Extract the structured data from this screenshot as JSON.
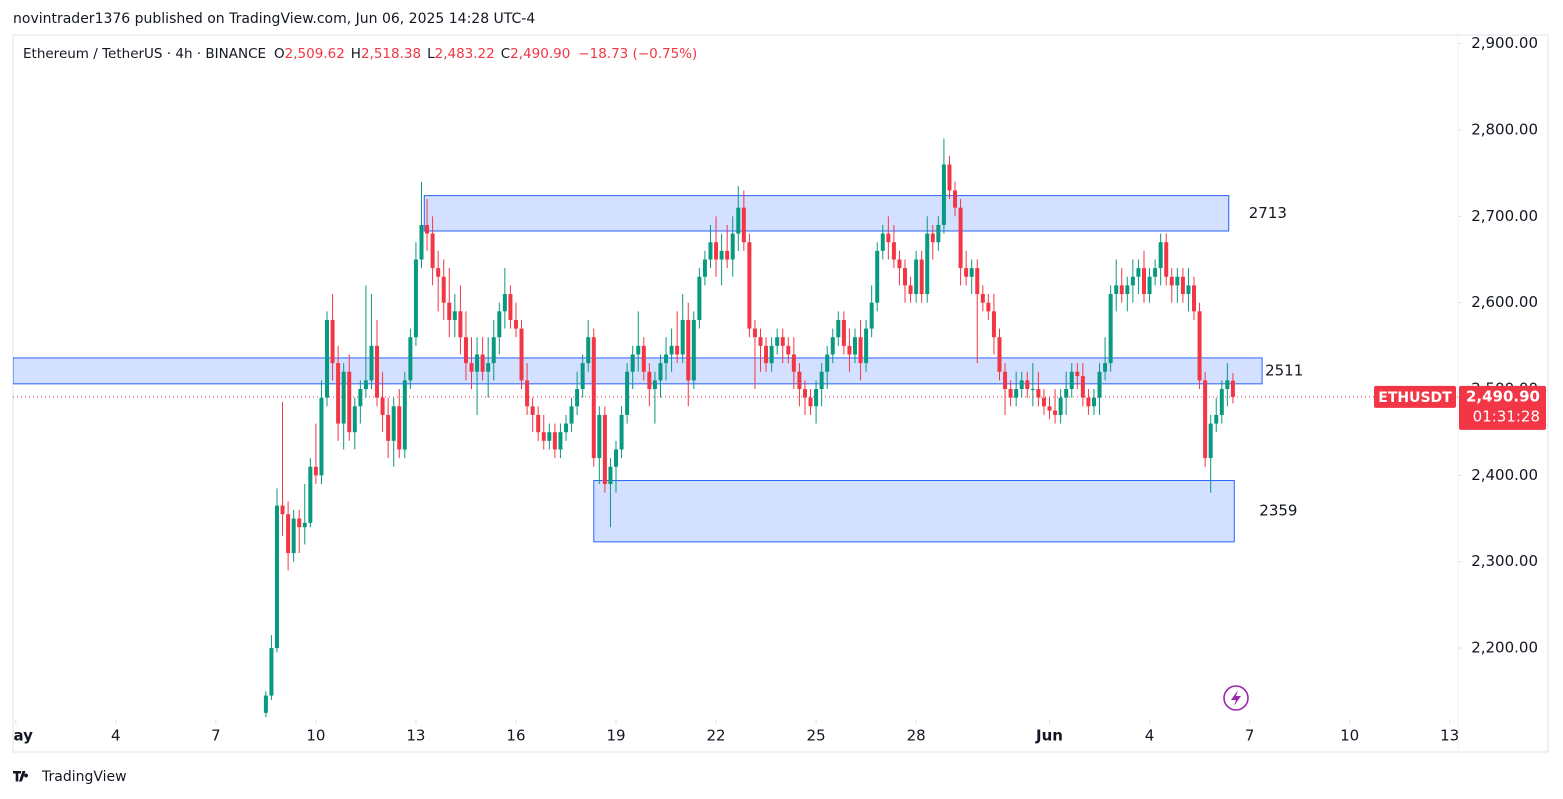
{
  "header": {
    "publisher": "novintrader1376 published on TradingView.com, Jun 06, 2025 14:28 UTC-4",
    "footer_brand": "TradingView"
  },
  "chart_data": {
    "type": "candlestick",
    "title": "Ethereum / TetherUS · 4h · BINANCE",
    "ohlc_labels": [
      "O",
      "H",
      "L",
      "C"
    ],
    "ohlc_values": [
      "2,509.62",
      "2,518.38",
      "2,483.22",
      "2,490.90"
    ],
    "change": "−18.73 (−0.75%)",
    "up_color": "#089981",
    "down_color": "#f23645",
    "x": [
      180,
      184,
      188,
      192,
      196,
      200,
      204,
      208,
      212,
      216,
      220,
      224,
      228,
      232,
      236,
      240,
      244,
      248,
      252,
      256,
      260,
      264,
      268,
      272,
      276,
      280,
      284,
      288,
      292,
      296,
      300,
      304,
      308,
      312,
      316,
      320,
      324,
      328,
      332,
      336,
      340,
      344,
      348,
      352,
      356,
      360,
      364,
      368,
      372,
      376,
      380,
      384,
      388,
      392,
      396,
      400,
      404,
      408,
      412,
      416,
      420,
      424,
      428,
      432,
      436,
      440,
      444,
      448,
      452,
      456,
      460,
      464,
      468,
      472,
      476,
      480,
      484,
      488,
      492,
      496,
      500,
      504,
      508,
      512,
      516,
      520,
      524,
      528,
      532,
      536,
      540,
      544,
      548,
      552,
      556,
      560,
      564,
      568,
      572,
      576,
      580,
      584,
      588,
      592,
      596,
      600,
      604,
      608,
      612,
      616,
      620,
      624,
      628,
      632,
      636,
      640,
      644,
      648,
      652,
      656,
      660,
      664,
      668,
      672,
      676,
      680,
      684,
      688,
      692,
      696,
      700,
      704,
      708,
      712,
      716,
      720,
      724,
      728,
      732,
      736,
      740,
      744,
      748,
      752,
      756,
      760,
      764,
      768,
      772,
      776,
      780,
      784,
      788,
      792,
      796,
      800,
      804,
      808,
      812,
      816,
      820,
      824,
      828,
      832,
      836,
      840,
      844,
      848,
      852,
      856,
      860,
      864,
      868,
      872,
      876
    ],
    "candles": [
      [
        2125,
        2150,
        2120,
        2145
      ],
      [
        2145,
        2215,
        2140,
        2200
      ],
      [
        2200,
        2385,
        2195,
        2365
      ],
      [
        2365,
        2485,
        2330,
        2355
      ],
      [
        2355,
        2370,
        2290,
        2310
      ],
      [
        2310,
        2360,
        2300,
        2350
      ],
      [
        2350,
        2360,
        2310,
        2340
      ],
      [
        2340,
        2390,
        2320,
        2345
      ],
      [
        2345,
        2420,
        2340,
        2410
      ],
      [
        2410,
        2460,
        2390,
        2400
      ],
      [
        2400,
        2510,
        2390,
        2490
      ],
      [
        2490,
        2590,
        2480,
        2580
      ],
      [
        2580,
        2610,
        2510,
        2530
      ],
      [
        2530,
        2550,
        2440,
        2460
      ],
      [
        2460,
        2530,
        2430,
        2520
      ],
      [
        2520,
        2540,
        2440,
        2450
      ],
      [
        2450,
        2490,
        2430,
        2480
      ],
      [
        2480,
        2510,
        2460,
        2500
      ],
      [
        2500,
        2620,
        2490,
        2510
      ],
      [
        2510,
        2610,
        2500,
        2550
      ],
      [
        2550,
        2580,
        2480,
        2490
      ],
      [
        2490,
        2520,
        2450,
        2470
      ],
      [
        2470,
        2490,
        2420,
        2440
      ],
      [
        2440,
        2490,
        2410,
        2480
      ],
      [
        2480,
        2500,
        2420,
        2430
      ],
      [
        2430,
        2520,
        2420,
        2510
      ],
      [
        2510,
        2570,
        2500,
        2560
      ],
      [
        2560,
        2670,
        2550,
        2650
      ],
      [
        2650,
        2740,
        2640,
        2690
      ],
      [
        2690,
        2720,
        2660,
        2680
      ],
      [
        2680,
        2700,
        2620,
        2640
      ],
      [
        2640,
        2660,
        2590,
        2630
      ],
      [
        2630,
        2650,
        2580,
        2600
      ],
      [
        2600,
        2640,
        2560,
        2580
      ],
      [
        2580,
        2610,
        2560,
        2590
      ],
      [
        2590,
        2620,
        2540,
        2560
      ],
      [
        2560,
        2590,
        2510,
        2530
      ],
      [
        2530,
        2560,
        2500,
        2520
      ],
      [
        2520,
        2560,
        2470,
        2540
      ],
      [
        2540,
        2560,
        2510,
        2520
      ],
      [
        2520,
        2560,
        2490,
        2530
      ],
      [
        2530,
        2580,
        2510,
        2560
      ],
      [
        2560,
        2600,
        2540,
        2590
      ],
      [
        2590,
        2640,
        2570,
        2610
      ],
      [
        2610,
        2620,
        2570,
        2580
      ],
      [
        2580,
        2600,
        2560,
        2570
      ],
      [
        2570,
        2580,
        2500,
        2510
      ],
      [
        2510,
        2530,
        2470,
        2480
      ],
      [
        2480,
        2490,
        2450,
        2470
      ],
      [
        2470,
        2480,
        2440,
        2450
      ],
      [
        2450,
        2470,
        2430,
        2440
      ],
      [
        2440,
        2460,
        2430,
        2450
      ],
      [
        2450,
        2460,
        2420,
        2430
      ],
      [
        2430,
        2460,
        2420,
        2450
      ],
      [
        2450,
        2470,
        2440,
        2460
      ],
      [
        2460,
        2490,
        2450,
        2480
      ],
      [
        2480,
        2520,
        2470,
        2500
      ],
      [
        2500,
        2540,
        2490,
        2530
      ],
      [
        2530,
        2580,
        2520,
        2560
      ],
      [
        2560,
        2570,
        2410,
        2420
      ],
      [
        2420,
        2480,
        2390,
        2470
      ],
      [
        2470,
        2480,
        2380,
        2390
      ],
      [
        2390,
        2420,
        2340,
        2410
      ],
      [
        2410,
        2440,
        2380,
        2430
      ],
      [
        2430,
        2480,
        2420,
        2470
      ],
      [
        2470,
        2530,
        2460,
        2520
      ],
      [
        2520,
        2550,
        2500,
        2540
      ],
      [
        2540,
        2590,
        2520,
        2550
      ],
      [
        2550,
        2560,
        2510,
        2520
      ],
      [
        2520,
        2530,
        2480,
        2500
      ],
      [
        2500,
        2520,
        2460,
        2510
      ],
      [
        2510,
        2540,
        2490,
        2530
      ],
      [
        2530,
        2560,
        2510,
        2540
      ],
      [
        2540,
        2570,
        2520,
        2550
      ],
      [
        2550,
        2590,
        2530,
        2540
      ],
      [
        2540,
        2610,
        2530,
        2580
      ],
      [
        2580,
        2600,
        2480,
        2510
      ],
      [
        2510,
        2590,
        2500,
        2580
      ],
      [
        2580,
        2640,
        2570,
        2630
      ],
      [
        2630,
        2660,
        2620,
        2650
      ],
      [
        2650,
        2690,
        2640,
        2670
      ],
      [
        2670,
        2700,
        2630,
        2650
      ],
      [
        2650,
        2680,
        2620,
        2660
      ],
      [
        2660,
        2690,
        2640,
        2650
      ],
      [
        2650,
        2700,
        2630,
        2680
      ],
      [
        2680,
        2735,
        2660,
        2710
      ],
      [
        2710,
        2730,
        2660,
        2670
      ],
      [
        2670,
        2680,
        2560,
        2570
      ],
      [
        2570,
        2580,
        2500,
        2560
      ],
      [
        2560,
        2570,
        2520,
        2550
      ],
      [
        2550,
        2560,
        2520,
        2530
      ],
      [
        2530,
        2560,
        2520,
        2550
      ],
      [
        2550,
        2570,
        2540,
        2560
      ],
      [
        2560,
        2570,
        2530,
        2550
      ],
      [
        2550,
        2560,
        2530,
        2540
      ],
      [
        2540,
        2560,
        2500,
        2520
      ],
      [
        2520,
        2530,
        2480,
        2500
      ],
      [
        2500,
        2510,
        2470,
        2490
      ],
      [
        2490,
        2500,
        2470,
        2480
      ],
      [
        2480,
        2510,
        2460,
        2500
      ],
      [
        2500,
        2530,
        2480,
        2520
      ],
      [
        2520,
        2550,
        2500,
        2540
      ],
      [
        2540,
        2570,
        2530,
        2560
      ],
      [
        2560,
        2590,
        2550,
        2580
      ],
      [
        2580,
        2590,
        2540,
        2550
      ],
      [
        2550,
        2570,
        2520,
        2540
      ],
      [
        2540,
        2570,
        2530,
        2560
      ],
      [
        2560,
        2580,
        2510,
        2530
      ],
      [
        2530,
        2580,
        2520,
        2570
      ],
      [
        2570,
        2620,
        2560,
        2600
      ],
      [
        2600,
        2670,
        2590,
        2660
      ],
      [
        2660,
        2690,
        2650,
        2680
      ],
      [
        2680,
        2700,
        2650,
        2670
      ],
      [
        2670,
        2690,
        2640,
        2650
      ],
      [
        2650,
        2660,
        2620,
        2640
      ],
      [
        2640,
        2650,
        2600,
        2620
      ],
      [
        2620,
        2630,
        2600,
        2610
      ],
      [
        2610,
        2660,
        2600,
        2650
      ],
      [
        2650,
        2660,
        2600,
        2610
      ],
      [
        2610,
        2700,
        2600,
        2680
      ],
      [
        2680,
        2690,
        2650,
        2670
      ],
      [
        2670,
        2700,
        2660,
        2690
      ],
      [
        2690,
        2790,
        2680,
        2760
      ],
      [
        2760,
        2770,
        2720,
        2730
      ],
      [
        2730,
        2740,
        2700,
        2710
      ],
      [
        2710,
        2720,
        2620,
        2640
      ],
      [
        2640,
        2660,
        2620,
        2630
      ],
      [
        2630,
        2650,
        2610,
        2640
      ],
      [
        2640,
        2650,
        2530,
        2610
      ],
      [
        2610,
        2620,
        2590,
        2600
      ],
      [
        2600,
        2610,
        2580,
        2590
      ],
      [
        2590,
        2610,
        2540,
        2560
      ],
      [
        2560,
        2570,
        2510,
        2520
      ],
      [
        2520,
        2530,
        2470,
        2500
      ],
      [
        2500,
        2510,
        2480,
        2490
      ],
      [
        2490,
        2520,
        2480,
        2500
      ],
      [
        2500,
        2520,
        2490,
        2510
      ],
      [
        2510,
        2520,
        2490,
        2500
      ],
      [
        2500,
        2530,
        2480,
        2500
      ],
      [
        2500,
        2520,
        2480,
        2490
      ],
      [
        2490,
        2500,
        2470,
        2480
      ],
      [
        2480,
        2490,
        2465,
        2475
      ],
      [
        2475,
        2500,
        2460,
        2470
      ],
      [
        2470,
        2500,
        2460,
        2490
      ],
      [
        2490,
        2520,
        2470,
        2500
      ],
      [
        2500,
        2530,
        2490,
        2520
      ],
      [
        2520,
        2530,
        2500,
        2515
      ],
      [
        2515,
        2530,
        2480,
        2490
      ],
      [
        2490,
        2500,
        2470,
        2480
      ],
      [
        2480,
        2500,
        2470,
        2490
      ],
      [
        2490,
        2530,
        2470,
        2520
      ],
      [
        2520,
        2560,
        2510,
        2530
      ],
      [
        2530,
        2620,
        2520,
        2610
      ],
      [
        2610,
        2650,
        2590,
        2620
      ],
      [
        2620,
        2640,
        2600,
        2610
      ],
      [
        2610,
        2630,
        2590,
        2620
      ],
      [
        2620,
        2650,
        2600,
        2630
      ],
      [
        2630,
        2650,
        2610,
        2640
      ],
      [
        2640,
        2660,
        2600,
        2610
      ],
      [
        2610,
        2640,
        2600,
        2630
      ],
      [
        2630,
        2650,
        2620,
        2640
      ],
      [
        2640,
        2680,
        2620,
        2670
      ],
      [
        2670,
        2680,
        2620,
        2630
      ],
      [
        2630,
        2640,
        2600,
        2620
      ],
      [
        2620,
        2640,
        2600,
        2630
      ],
      [
        2630,
        2640,
        2600,
        2610
      ],
      [
        2610,
        2640,
        2590,
        2620
      ],
      [
        2620,
        2630,
        2580,
        2590
      ],
      [
        2590,
        2600,
        2500,
        2510
      ],
      [
        2510,
        2520,
        2410,
        2420
      ],
      [
        2420,
        2470,
        2380,
        2460
      ],
      [
        2460,
        2490,
        2450,
        2470
      ],
      [
        2470,
        2510,
        2460,
        2500
      ],
      [
        2500,
        2530,
        2480,
        2510
      ],
      [
        2509.62,
        2518.38,
        2483.22,
        2490.9
      ]
    ],
    "xlim": [
      -2,
      1038
    ],
    "xticks": [
      {
        "value": 0,
        "label": "May"
      },
      {
        "value": 72,
        "label": "4"
      },
      {
        "value": 144,
        "label": "7"
      },
      {
        "value": 216,
        "label": "10"
      },
      {
        "value": 288,
        "label": "13"
      },
      {
        "value": 360,
        "label": "16"
      },
      {
        "value": 432,
        "label": "19"
      },
      {
        "value": 504,
        "label": "22"
      },
      {
        "value": 576,
        "label": "25"
      },
      {
        "value": 648,
        "label": "28"
      },
      {
        "value": 744,
        "label": "Jun"
      },
      {
        "value": 816,
        "label": "4"
      },
      {
        "value": 888,
        "label": "7"
      },
      {
        "value": 960,
        "label": "10"
      },
      {
        "value": 1032,
        "label": "13"
      }
    ],
    "ylim": [
      2119,
      2910
    ],
    "yticks": [
      {
        "value": 2200,
        "label": "2,200.00"
      },
      {
        "value": 2300,
        "label": "2,300.00"
      },
      {
        "value": 2400,
        "label": "2,400.00"
      },
      {
        "value": 2500,
        "label": "2,500.00"
      },
      {
        "value": 2600,
        "label": "2,600.00"
      },
      {
        "value": 2700,
        "label": "2,700.00"
      },
      {
        "value": 2800,
        "label": "2,800.00"
      },
      {
        "value": 2900,
        "label": "2,900.00"
      }
    ],
    "zone_color": "#2962ff",
    "zones": [
      {
        "value": 2713,
        "ylim": [
          2683,
          2724
        ],
        "xlim": [
          294,
          873
        ]
      },
      {
        "value": 2511,
        "ylim": [
          2506,
          2536
        ],
        "xlim": [
          -2,
          897
        ]
      },
      {
        "value": 2359,
        "ylim": [
          2323,
          2394
        ],
        "xlim": [
          416,
          877
        ]
      }
    ],
    "last_price": {
      "symbol": "ETHUSDT",
      "value": 2490.9,
      "label": "2,490.90",
      "countdown": "01:31:28"
    }
  }
}
